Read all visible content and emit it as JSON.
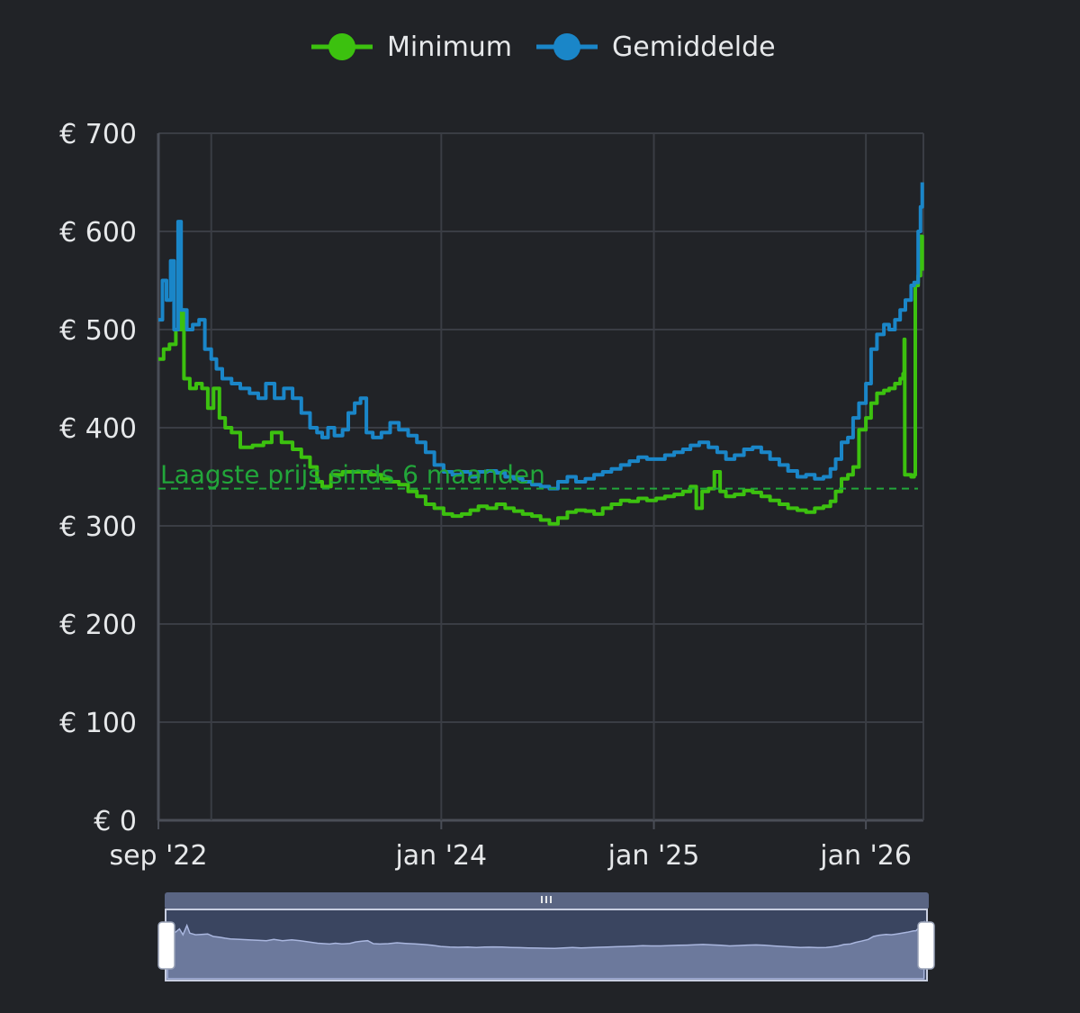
{
  "chart_data": {
    "type": "line",
    "title": "",
    "xlabel": "",
    "ylabel": "",
    "x_ticks": [
      {
        "label": "sep '22",
        "date": "2022-09-01"
      },
      {
        "label": "jan '24",
        "date": "2024-01-01"
      },
      {
        "label": "jan '25",
        "date": "2025-01-01"
      },
      {
        "label": "jan '26",
        "date": "2026-01-01"
      }
    ],
    "xlim": [
      "2022-09-01",
      "2026-04-10"
    ],
    "y_ticks": [
      0,
      100,
      200,
      300,
      400,
      500,
      600,
      700
    ],
    "y_tick_format": "€ {v}",
    "ylim": [
      0,
      700
    ],
    "grid": true,
    "legend_position": "top-center",
    "series": [
      {
        "name": "Minimum",
        "color": "#3cc10f",
        "points": [
          [
            "2022-09-01",
            470
          ],
          [
            "2022-09-10",
            480
          ],
          [
            "2022-09-20",
            485
          ],
          [
            "2022-10-01",
            500
          ],
          [
            "2022-10-10",
            520
          ],
          [
            "2022-10-15",
            450
          ],
          [
            "2022-10-25",
            440
          ],
          [
            "2022-11-05",
            445
          ],
          [
            "2022-11-15",
            440
          ],
          [
            "2022-11-25",
            420
          ],
          [
            "2022-12-05",
            440
          ],
          [
            "2022-12-15",
            410
          ],
          [
            "2022-12-25",
            400
          ],
          [
            "2023-01-05",
            395
          ],
          [
            "2023-01-20",
            380
          ],
          [
            "2023-02-10",
            382
          ],
          [
            "2023-03-01",
            385
          ],
          [
            "2023-03-15",
            395
          ],
          [
            "2023-04-01",
            385
          ],
          [
            "2023-04-20",
            378
          ],
          [
            "2023-05-05",
            370
          ],
          [
            "2023-05-20",
            360
          ],
          [
            "2023-06-01",
            345
          ],
          [
            "2023-06-10",
            340
          ],
          [
            "2023-06-25",
            352
          ],
          [
            "2023-07-15",
            355
          ],
          [
            "2023-08-10",
            355
          ],
          [
            "2023-09-01",
            352
          ],
          [
            "2023-09-20",
            348
          ],
          [
            "2023-10-05",
            345
          ],
          [
            "2023-10-20",
            342
          ],
          [
            "2023-11-05",
            335
          ],
          [
            "2023-11-20",
            330
          ],
          [
            "2023-12-05",
            322
          ],
          [
            "2023-12-20",
            318
          ],
          [
            "2024-01-05",
            312
          ],
          [
            "2024-01-20",
            310
          ],
          [
            "2024-02-05",
            312
          ],
          [
            "2024-02-20",
            316
          ],
          [
            "2024-03-05",
            320
          ],
          [
            "2024-03-20",
            318
          ],
          [
            "2024-04-05",
            322
          ],
          [
            "2024-04-20",
            318
          ],
          [
            "2024-05-05",
            315
          ],
          [
            "2024-05-20",
            312
          ],
          [
            "2024-06-05",
            310
          ],
          [
            "2024-06-20",
            306
          ],
          [
            "2024-07-05",
            302
          ],
          [
            "2024-07-20",
            308
          ],
          [
            "2024-08-05",
            314
          ],
          [
            "2024-08-20",
            316
          ],
          [
            "2024-09-05",
            315
          ],
          [
            "2024-09-20",
            312
          ],
          [
            "2024-10-05",
            318
          ],
          [
            "2024-10-20",
            322
          ],
          [
            "2024-11-05",
            326
          ],
          [
            "2024-11-20",
            325
          ],
          [
            "2024-12-05",
            328
          ],
          [
            "2024-12-20",
            326
          ],
          [
            "2025-01-05",
            328
          ],
          [
            "2025-01-20",
            330
          ],
          [
            "2025-02-05",
            332
          ],
          [
            "2025-02-20",
            335
          ],
          [
            "2025-03-05",
            340
          ],
          [
            "2025-03-15",
            318
          ],
          [
            "2025-03-25",
            335
          ],
          [
            "2025-04-05",
            338
          ],
          [
            "2025-04-15",
            355
          ],
          [
            "2025-04-25",
            335
          ],
          [
            "2025-05-05",
            330
          ],
          [
            "2025-05-20",
            332
          ],
          [
            "2025-06-05",
            336
          ],
          [
            "2025-06-20",
            334
          ],
          [
            "2025-07-05",
            330
          ],
          [
            "2025-07-20",
            326
          ],
          [
            "2025-08-05",
            322
          ],
          [
            "2025-08-20",
            318
          ],
          [
            "2025-09-05",
            316
          ],
          [
            "2025-09-20",
            314
          ],
          [
            "2025-10-05",
            318
          ],
          [
            "2025-10-20",
            320
          ],
          [
            "2025-11-01",
            325
          ],
          [
            "2025-11-10",
            335
          ],
          [
            "2025-11-20",
            348
          ],
          [
            "2025-12-01",
            352
          ],
          [
            "2025-12-10",
            360
          ],
          [
            "2025-12-20",
            398
          ],
          [
            "2026-01-01",
            410
          ],
          [
            "2026-01-10",
            425
          ],
          [
            "2026-01-20",
            435
          ],
          [
            "2026-02-01",
            438
          ],
          [
            "2026-02-10",
            440
          ],
          [
            "2026-02-20",
            445
          ],
          [
            "2026-03-01",
            450
          ],
          [
            "2026-03-06",
            455
          ],
          [
            "2026-03-08",
            490
          ],
          [
            "2026-03-09",
            352
          ],
          [
            "2026-03-20",
            350
          ],
          [
            "2026-03-25",
            352
          ],
          [
            "2026-03-27",
            545
          ],
          [
            "2026-04-01",
            555
          ],
          [
            "2026-04-05",
            595
          ],
          [
            "2026-04-08",
            560
          ]
        ]
      },
      {
        "name": "Gemiddelde",
        "color": "#1a86c8",
        "points": [
          [
            "2022-09-01",
            510
          ],
          [
            "2022-09-08",
            550
          ],
          [
            "2022-09-15",
            530
          ],
          [
            "2022-09-22",
            570
          ],
          [
            "2022-09-28",
            500
          ],
          [
            "2022-10-05",
            610
          ],
          [
            "2022-10-10",
            520
          ],
          [
            "2022-10-20",
            500
          ],
          [
            "2022-10-30",
            505
          ],
          [
            "2022-11-10",
            510
          ],
          [
            "2022-11-20",
            480
          ],
          [
            "2022-12-01",
            470
          ],
          [
            "2022-12-10",
            460
          ],
          [
            "2022-12-20",
            450
          ],
          [
            "2023-01-05",
            445
          ],
          [
            "2023-01-20",
            440
          ],
          [
            "2023-02-05",
            435
          ],
          [
            "2023-02-20",
            430
          ],
          [
            "2023-03-05",
            445
          ],
          [
            "2023-03-20",
            430
          ],
          [
            "2023-04-05",
            440
          ],
          [
            "2023-04-20",
            430
          ],
          [
            "2023-05-05",
            415
          ],
          [
            "2023-05-20",
            400
          ],
          [
            "2023-06-01",
            395
          ],
          [
            "2023-06-10",
            390
          ],
          [
            "2023-06-20",
            400
          ],
          [
            "2023-07-01",
            392
          ],
          [
            "2023-07-15",
            398
          ],
          [
            "2023-07-25",
            415
          ],
          [
            "2023-08-05",
            425
          ],
          [
            "2023-08-15",
            430
          ],
          [
            "2023-08-25",
            395
          ],
          [
            "2023-09-05",
            390
          ],
          [
            "2023-09-20",
            395
          ],
          [
            "2023-10-05",
            405
          ],
          [
            "2023-10-20",
            398
          ],
          [
            "2023-11-05",
            392
          ],
          [
            "2023-11-20",
            385
          ],
          [
            "2023-12-05",
            375
          ],
          [
            "2023-12-20",
            362
          ],
          [
            "2024-01-05",
            355
          ],
          [
            "2024-01-20",
            352
          ],
          [
            "2024-02-05",
            355
          ],
          [
            "2024-02-20",
            350
          ],
          [
            "2024-03-05",
            355
          ],
          [
            "2024-03-20",
            356
          ],
          [
            "2024-04-05",
            354
          ],
          [
            "2024-04-20",
            350
          ],
          [
            "2024-05-05",
            348
          ],
          [
            "2024-05-20",
            345
          ],
          [
            "2024-06-05",
            342
          ],
          [
            "2024-06-20",
            340
          ],
          [
            "2024-07-05",
            338
          ],
          [
            "2024-07-20",
            345
          ],
          [
            "2024-08-05",
            350
          ],
          [
            "2024-08-20",
            345
          ],
          [
            "2024-09-05",
            348
          ],
          [
            "2024-09-20",
            352
          ],
          [
            "2024-10-05",
            355
          ],
          [
            "2024-10-20",
            358
          ],
          [
            "2024-11-05",
            362
          ],
          [
            "2024-11-20",
            366
          ],
          [
            "2024-12-05",
            370
          ],
          [
            "2024-12-20",
            368
          ],
          [
            "2025-01-05",
            368
          ],
          [
            "2025-01-20",
            372
          ],
          [
            "2025-02-05",
            375
          ],
          [
            "2025-02-20",
            378
          ],
          [
            "2025-03-05",
            382
          ],
          [
            "2025-03-20",
            385
          ],
          [
            "2025-04-05",
            380
          ],
          [
            "2025-04-20",
            375
          ],
          [
            "2025-05-05",
            368
          ],
          [
            "2025-05-20",
            372
          ],
          [
            "2025-06-05",
            378
          ],
          [
            "2025-06-20",
            380
          ],
          [
            "2025-07-05",
            375
          ],
          [
            "2025-07-20",
            368
          ],
          [
            "2025-08-05",
            362
          ],
          [
            "2025-08-20",
            356
          ],
          [
            "2025-09-05",
            350
          ],
          [
            "2025-09-20",
            352
          ],
          [
            "2025-10-05",
            348
          ],
          [
            "2025-10-20",
            350
          ],
          [
            "2025-11-01",
            358
          ],
          [
            "2025-11-10",
            368
          ],
          [
            "2025-11-20",
            385
          ],
          [
            "2025-12-01",
            390
          ],
          [
            "2025-12-10",
            410
          ],
          [
            "2025-12-20",
            425
          ],
          [
            "2026-01-01",
            445
          ],
          [
            "2026-01-10",
            480
          ],
          [
            "2026-01-20",
            495
          ],
          [
            "2026-02-01",
            505
          ],
          [
            "2026-02-10",
            500
          ],
          [
            "2026-02-20",
            510
          ],
          [
            "2026-03-01",
            520
          ],
          [
            "2026-03-10",
            530
          ],
          [
            "2026-03-20",
            545
          ],
          [
            "2026-03-25",
            548
          ],
          [
            "2026-04-01",
            600
          ],
          [
            "2026-04-05",
            625
          ],
          [
            "2026-04-08",
            650
          ]
        ]
      }
    ],
    "annotations": [
      {
        "type": "horizontal-line",
        "y": 338,
        "color": "#22a63a",
        "style": "dashed",
        "label": "Laagste prijs sinds 6 maanden"
      }
    ],
    "navigator": {
      "range": [
        "2022-09-01",
        "2026-04-10"
      ],
      "handle_icon": "grip-icon"
    }
  }
}
